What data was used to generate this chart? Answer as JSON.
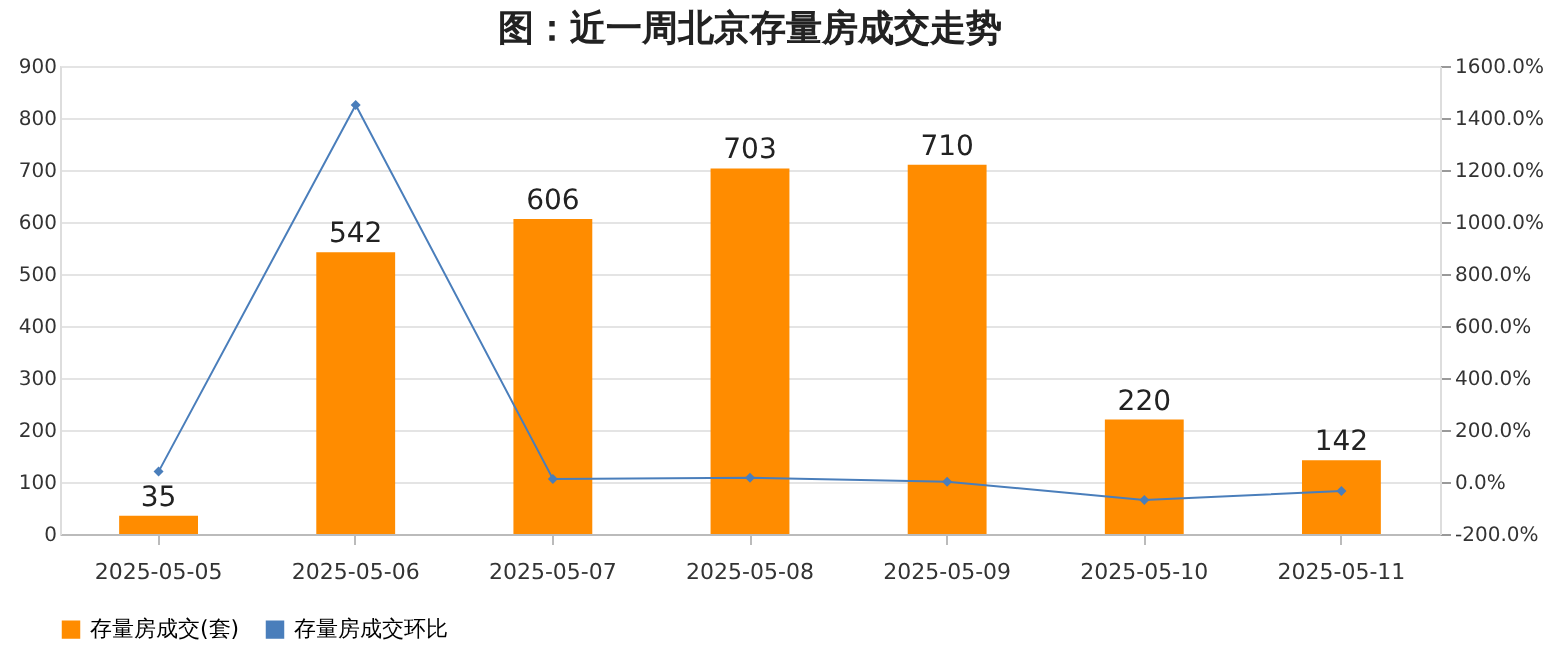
{
  "chart_data": {
    "type": "bar",
    "title": "图：近一周北京存量房成交走势",
    "categories": [
      "2025-05-05",
      "2025-05-06",
      "2025-05-07",
      "2025-05-08",
      "2025-05-09",
      "2025-05-10",
      "2025-05-11"
    ],
    "series": [
      {
        "name": "存量房成交(套)",
        "color": "#ff8c00",
        "values": [
          35,
          542,
          606,
          703,
          710,
          220,
          142
        ],
        "value_labels": [
          "35",
          "542",
          "606",
          "703",
          "710",
          "220",
          "142"
        ]
      },
      {
        "name": "存量房成交环比",
        "type": "line",
        "axis": "y2",
        "color": "#4a7ebb",
        "marker": "diamond",
        "values": [
          40,
          1450,
          12,
          16,
          1,
          -69,
          -35
        ]
      }
    ],
    "ylim": [
      0,
      900
    ],
    "yticks": [
      0,
      100,
      200,
      300,
      400,
      500,
      600,
      700,
      800,
      900
    ],
    "y2lim": [
      -200,
      1600
    ],
    "y2ticks": [
      {
        "value": -200,
        "label": "-200.0%"
      },
      {
        "value": 0,
        "label": "0.0%"
      },
      {
        "value": 200,
        "label": "200.0%"
      },
      {
        "value": 400,
        "label": "400.0%"
      },
      {
        "value": 600,
        "label": "600.0%"
      },
      {
        "value": 800,
        "label": "800.0%"
      },
      {
        "value": 1000,
        "label": "1000.0%"
      },
      {
        "value": 1200,
        "label": "1200.0%"
      },
      {
        "value": 1400,
        "label": "1400.0%"
      },
      {
        "value": 1600,
        "label": "1600.0%"
      }
    ],
    "grid": "y",
    "legend": "bottom"
  }
}
